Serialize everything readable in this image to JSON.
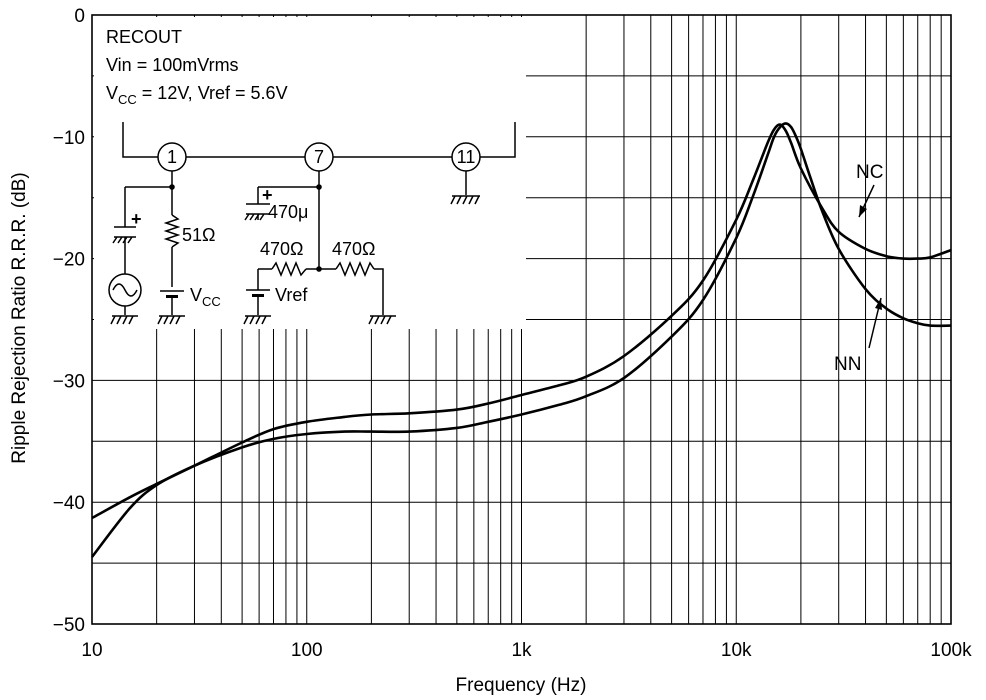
{
  "chart_data": {
    "type": "line",
    "xscale": "log",
    "xlim": [
      10,
      100000
    ],
    "ylim": [
      -50,
      0
    ],
    "xlabel": "Frequency  (Hz)",
    "ylabel": "Ripple Rejection Ratio  R.R.R.  (dB)",
    "x_tick_values": [
      10,
      100,
      1000,
      10000,
      100000
    ],
    "x_ticks": [
      "10",
      "100",
      "1k",
      "10k",
      "100k"
    ],
    "y_tick_values": [
      0,
      -10,
      -20,
      -30,
      -40,
      -50
    ],
    "y_ticks": [
      "0",
      "−10",
      "−20",
      "−30",
      "−40",
      "−50"
    ],
    "grid": true,
    "series": [
      {
        "name": "NC",
        "x": [
          10,
          15,
          20,
          30,
          50,
          70,
          100,
          150,
          200,
          300,
          500,
          700,
          1000,
          1500,
          2000,
          3000,
          5000,
          7000,
          10000,
          12000,
          14000,
          15000,
          16000,
          17000,
          18000,
          20000,
          25000,
          30000,
          40000,
          50000,
          60000,
          70000,
          80000,
          100000
        ],
        "y": [
          -41.3,
          -39.6,
          -38.5,
          -37.0,
          -35.1,
          -34.0,
          -33.4,
          -33.0,
          -32.8,
          -32.7,
          -32.4,
          -31.9,
          -31.2,
          -30.4,
          -29.7,
          -28.0,
          -24.7,
          -21.8,
          -16.8,
          -13.5,
          -10.5,
          -9.4,
          -9.0,
          -9.5,
          -10.5,
          -12.6,
          -15.8,
          -17.8,
          -19.2,
          -19.8,
          -20.0,
          -20.0,
          -19.9,
          -19.3
        ]
      },
      {
        "name": "NN",
        "x": [
          10,
          15,
          20,
          30,
          50,
          70,
          100,
          150,
          200,
          300,
          500,
          700,
          1000,
          1500,
          2000,
          3000,
          5000,
          7000,
          10000,
          12000,
          14000,
          15000,
          16000,
          17000,
          18000,
          19000,
          20000,
          22000,
          25000,
          30000,
          40000,
          50000,
          60000,
          70000,
          80000,
          100000
        ],
        "y": [
          -44.5,
          -40.5,
          -38.6,
          -37.0,
          -35.5,
          -34.8,
          -34.4,
          -34.2,
          -34.2,
          -34.2,
          -33.9,
          -33.4,
          -32.8,
          -32.0,
          -31.3,
          -29.8,
          -26.4,
          -23.4,
          -18.3,
          -14.8,
          -11.5,
          -10.0,
          -9.2,
          -8.9,
          -9.2,
          -10.0,
          -11.0,
          -13.2,
          -16.0,
          -19.2,
          -22.5,
          -24.1,
          -24.9,
          -25.3,
          -25.5,
          -25.5
        ]
      }
    ],
    "annotations": [
      "NC",
      "NN"
    ],
    "inset": {
      "title": "RECOUT",
      "line2": "Vin = 100mVrms",
      "line3_pre": "V",
      "line3_sub": "CC",
      "line3_post": " = 12V, Vref = 5.6V",
      "pins": [
        "1",
        "7",
        "11"
      ],
      "r_input": "51Ω",
      "cap": "470μ",
      "r_left": "470Ω",
      "r_right": "470Ω",
      "vcc_pre": "V",
      "vcc_sub": "CC",
      "vref": "Vref",
      "plus": "+"
    }
  }
}
